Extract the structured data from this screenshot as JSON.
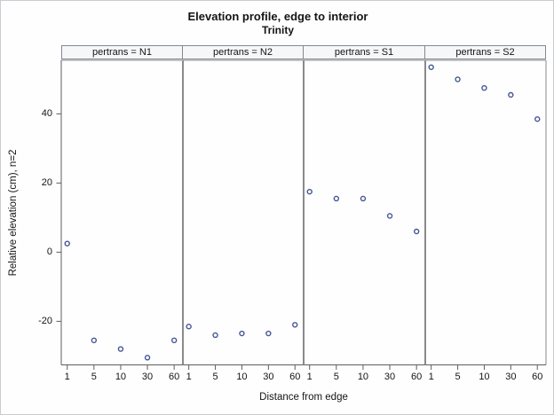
{
  "figure": {
    "title": "Elevation profile, edge to interior",
    "subtitle": "Trinity"
  },
  "chart_data": {
    "type": "scatter",
    "title": "Elevation profile, edge to interior",
    "subtitle": "Trinity",
    "panel_variable": "pertrans",
    "categories": [
      "1",
      "5",
      "10",
      "30",
      "60"
    ],
    "xlabel": "Distance from edge",
    "ylabel": "Relative elevation (cm), n=2",
    "yticks": [
      40,
      20,
      0,
      -20
    ],
    "ylim": [
      -32.6,
      55.5
    ],
    "legend": "none",
    "grid": "off",
    "marker": {
      "shape": "open-circle",
      "color": "#445694"
    },
    "panels": [
      {
        "name": "N1",
        "label": "pertrans = N1",
        "values": [
          2.5,
          -25.5,
          -28,
          -30.5,
          -25.5
        ]
      },
      {
        "name": "N2",
        "label": "pertrans = N2",
        "values": [
          -21.5,
          -24,
          -23.5,
          -23.5,
          -21
        ]
      },
      {
        "name": "S1",
        "label": "pertrans = S1",
        "values": [
          17.5,
          15.5,
          15.5,
          10.5,
          6
        ]
      },
      {
        "name": "S2",
        "label": "pertrans = S2",
        "values": [
          53.5,
          50,
          47.5,
          45.5,
          38.5
        ]
      }
    ]
  }
}
